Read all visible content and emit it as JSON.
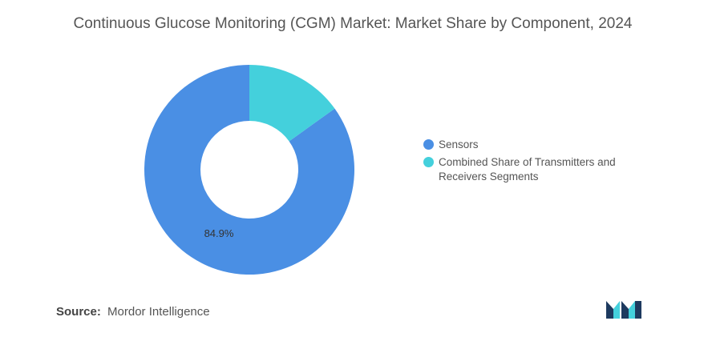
{
  "chart_data": {
    "type": "pie",
    "title": "Continuous Glucose Monitoring (CGM) Market: Market Share by Component, 2024",
    "series": [
      {
        "name": "Sensors",
        "value": 84.9,
        "color": "#4a8fe4",
        "label": "84.9%"
      },
      {
        "name": "Combined Share of Transmitters and Receivers Segments",
        "value": 15.1,
        "color": "#44d0dc",
        "label": ""
      }
    ],
    "legend_position": "right",
    "donut": true
  },
  "source": {
    "key": "Source:",
    "value": "Mordor Intelligence"
  },
  "logo": {
    "icon": "mordor-intelligence-logo-icon",
    "colors": [
      "#1e3a5f",
      "#44d0dc"
    ]
  }
}
